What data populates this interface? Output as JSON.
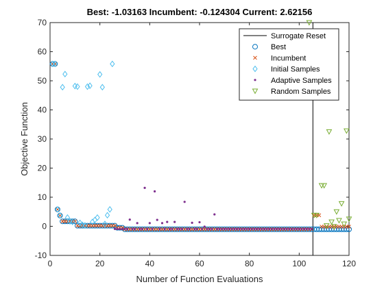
{
  "chart_data": {
    "type": "scatter",
    "title": "Best: -1.03163 Incumbent: -0.124304 Current: 2.62156",
    "xlabel": "Number of Function Evaluations",
    "ylabel": "Objective Function",
    "xlim": [
      0,
      120
    ],
    "xticks": [
      0,
      20,
      40,
      60,
      80,
      100,
      120
    ],
    "ylim": [
      -10,
      70
    ],
    "yticks": [
      -10,
      0,
      10,
      20,
      30,
      40,
      50,
      60,
      70
    ],
    "legend": "upper right",
    "series": [
      {
        "name": "Surrogate Reset",
        "color": "#000000",
        "marker": "line",
        "x": [
          105.5,
          105.5
        ],
        "values": [
          -10,
          70
        ]
      },
      {
        "name": "Best",
        "color": "#0072bd",
        "marker": "o",
        "x": [
          1,
          2,
          3,
          4,
          5,
          6,
          7,
          8,
          9,
          10,
          11,
          12,
          13,
          14,
          15,
          16,
          17,
          18,
          19,
          20,
          21,
          22,
          23,
          24,
          25,
          26,
          27,
          28,
          29,
          30,
          31,
          32,
          33,
          34,
          35,
          36,
          37,
          38,
          39,
          40,
          41,
          42,
          43,
          44,
          45,
          46,
          47,
          48,
          49,
          50,
          51,
          52,
          53,
          54,
          55,
          56,
          57,
          58,
          59,
          60,
          61,
          62,
          63,
          64,
          65,
          66,
          67,
          68,
          69,
          70,
          71,
          72,
          73,
          74,
          75,
          76,
          77,
          78,
          79,
          80,
          81,
          82,
          83,
          84,
          85,
          86,
          87,
          88,
          89,
          90,
          91,
          92,
          93,
          94,
          95,
          96,
          97,
          98,
          99,
          100,
          101,
          102,
          103,
          104,
          105,
          106,
          107,
          108,
          109,
          110,
          111,
          112,
          113,
          114,
          115,
          116,
          117,
          118,
          119,
          120
        ],
        "values": [
          55.8,
          55.8,
          5.8,
          3.7,
          1.7,
          1.7,
          1.7,
          1.7,
          1.7,
          1.7,
          0.2,
          0.2,
          0.2,
          0.2,
          0.2,
          0.2,
          0.2,
          0.2,
          0.2,
          0.2,
          0.2,
          0.2,
          0.2,
          0.2,
          0.2,
          0.2,
          -0.5,
          -0.5,
          -0.5,
          -1.03,
          -1.03,
          -1.03,
          -1.03,
          -1.03,
          -1.03,
          -1.03,
          -1.03,
          -1.03,
          -1.03,
          -1.03,
          -1.03,
          -1.03,
          -1.03,
          -1.03,
          -1.03,
          -1.03,
          -1.03,
          -1.03,
          -1.03,
          -1.03,
          -1.03,
          -1.03,
          -1.03,
          -1.03,
          -1.03,
          -1.03,
          -1.03,
          -1.03,
          -1.03,
          -1.03,
          -1.03,
          -1.03,
          -1.03,
          -1.03,
          -1.03,
          -1.03,
          -1.03,
          -1.03,
          -1.03,
          -1.03,
          -1.03,
          -1.03,
          -1.03,
          -1.03,
          -1.03,
          -1.03,
          -1.03,
          -1.03,
          -1.03,
          -1.03,
          -1.03,
          -1.03,
          -1.03,
          -1.03,
          -1.03,
          -1.03,
          -1.03,
          -1.03,
          -1.03,
          -1.03,
          -1.03,
          -1.03,
          -1.03,
          -1.03,
          -1.03,
          -1.03,
          -1.03,
          -1.03,
          -1.03,
          -1.03,
          -1.03,
          -1.03,
          -1.03,
          -1.03,
          -1.03,
          -1.03,
          -1.03,
          -1.03,
          -1.03,
          -1.03,
          -1.03,
          -1.03,
          -1.03,
          -1.03,
          -1.03,
          -1.03,
          -1.03,
          -1.03,
          -1.03,
          -1.03
        ]
      },
      {
        "name": "Incumbent",
        "color": "#d95319",
        "marker": "x",
        "x": [
          1,
          2,
          3,
          4,
          5,
          6,
          7,
          8,
          9,
          10,
          11,
          12,
          13,
          14,
          15,
          16,
          17,
          18,
          19,
          20,
          21,
          22,
          23,
          24,
          25,
          26,
          27,
          28,
          29,
          30,
          31,
          32,
          33,
          34,
          35,
          36,
          37,
          38,
          39,
          40,
          41,
          42,
          43,
          44,
          45,
          46,
          47,
          48,
          49,
          50,
          51,
          52,
          53,
          54,
          55,
          56,
          57,
          58,
          59,
          60,
          61,
          62,
          63,
          64,
          65,
          66,
          67,
          68,
          69,
          70,
          71,
          72,
          73,
          74,
          75,
          76,
          77,
          78,
          79,
          80,
          81,
          82,
          83,
          84,
          85,
          86,
          87,
          88,
          89,
          90,
          91,
          92,
          93,
          94,
          95,
          96,
          97,
          98,
          99,
          100,
          101,
          102,
          103,
          104,
          105,
          106,
          107,
          108,
          109,
          110,
          111,
          112,
          113,
          114,
          115,
          116,
          117,
          118,
          119,
          120
        ],
        "values": [
          55.8,
          55.8,
          5.8,
          3.7,
          1.7,
          1.7,
          1.7,
          1.7,
          1.7,
          1.7,
          0.2,
          0.2,
          0.2,
          0.2,
          0.2,
          0.2,
          0.2,
          0.2,
          0.2,
          0.2,
          0.2,
          0.2,
          0.2,
          0.2,
          0.2,
          0.2,
          -0.5,
          -0.5,
          -0.5,
          -1.03,
          -1.03,
          -1.03,
          -1.03,
          -1.03,
          -1.03,
          -1.03,
          -1.03,
          -1.03,
          -1.03,
          -1.03,
          -1.03,
          -1.03,
          -1.03,
          -1.03,
          -1.03,
          -1.03,
          -1.03,
          -1.03,
          -1.03,
          -1.03,
          -1.03,
          -1.03,
          -1.03,
          -1.03,
          -1.03,
          -1.03,
          -1.03,
          -1.03,
          -1.03,
          -1.03,
          -1.03,
          -1.03,
          -1.03,
          -1.03,
          -1.03,
          -1.03,
          -1.03,
          -1.03,
          -1.03,
          -1.03,
          -1.03,
          -1.03,
          -1.03,
          -1.03,
          -1.03,
          -1.03,
          -1.03,
          -1.03,
          -1.03,
          -1.03,
          -1.03,
          -1.03,
          -1.03,
          -1.03,
          -1.03,
          -1.03,
          -1.03,
          -1.03,
          -1.03,
          -1.03,
          -1.03,
          -1.03,
          -1.03,
          -1.03,
          -1.03,
          -1.03,
          -1.03,
          -1.03,
          -1.03,
          -1.03,
          -1.03,
          -1.03,
          -1.03,
          -1.03,
          -1.03,
          3.8,
          3.8,
          3.8,
          -0.12,
          -0.12,
          -0.12,
          -0.12,
          -0.12,
          -0.12,
          -0.12,
          -0.12,
          -0.12,
          -0.12,
          -0.12,
          -0.12
        ]
      },
      {
        "name": "Initial Samples",
        "color": "#4dbeee",
        "marker": "diamond",
        "x": [
          1,
          2,
          3,
          4,
          5,
          6,
          7,
          8,
          9,
          10,
          11,
          12,
          13,
          14,
          15,
          16,
          17,
          18,
          19,
          20,
          21,
          22,
          23,
          24,
          25
        ],
        "values": [
          55.8,
          55.8,
          5.8,
          3.7,
          47.8,
          52.3,
          3.0,
          1.7,
          1.5,
          48.2,
          48,
          1.2,
          0.5,
          0.3,
          48,
          48.3,
          1.5,
          2.2,
          3.0,
          52.2,
          47.8,
          0.8,
          3.8,
          5.8,
          55.8
        ]
      },
      {
        "name": "Adaptive Samples",
        "color": "#7e2f8e",
        "marker": "dot",
        "x": [
          26,
          27,
          28,
          29,
          30,
          31,
          32,
          33,
          34,
          35,
          36,
          37,
          38,
          39,
          40,
          41,
          42,
          43,
          44,
          45,
          46,
          47,
          48,
          49,
          50,
          51,
          52,
          53,
          54,
          55,
          56,
          57,
          58,
          59,
          60,
          61,
          62,
          63,
          64,
          65,
          66,
          67,
          68,
          69,
          70,
          71,
          72,
          73,
          74,
          75,
          76,
          77,
          78,
          79,
          80,
          81,
          82,
          83,
          84,
          85,
          86,
          87,
          88,
          89,
          90,
          91,
          92,
          93,
          94,
          95,
          96,
          97,
          98,
          99,
          100,
          101,
          102,
          103,
          104,
          105
        ],
        "values": [
          -0.9,
          -0.9,
          -0.9,
          -0.9,
          -0.9,
          -0.9,
          2.3,
          -0.9,
          -0.9,
          1.1,
          -0.9,
          -0.9,
          13.2,
          -0.9,
          1.1,
          -0.9,
          12,
          2.2,
          -0.9,
          1.1,
          -0.9,
          1.5,
          -0.9,
          -0.9,
          1.5,
          -0.9,
          -0.9,
          -0.9,
          8.4,
          -0.9,
          -0.9,
          1.2,
          -0.9,
          -0.9,
          1.4,
          -0.9,
          -0.1,
          -0.9,
          -0.9,
          -0.9,
          4.1,
          -0.9,
          -0.9,
          -0.9,
          -0.9,
          -0.9,
          -0.9,
          -0.9,
          -0.9,
          -0.9,
          -0.9,
          -0.9,
          -0.9,
          -0.9,
          -0.9,
          -0.9,
          -0.9,
          -0.9,
          -0.9,
          -0.9,
          -0.9,
          -0.9,
          -0.9,
          -0.9,
          -0.9,
          -0.9,
          -0.9,
          -0.9,
          -0.9,
          -0.9,
          -0.9,
          -0.9,
          -0.9,
          -0.9,
          -0.9,
          -0.9,
          -0.9,
          -0.9,
          -0.9,
          -0.9
        ]
      },
      {
        "name": "Random Samples",
        "color": "#77ac30",
        "marker": "triangle-down",
        "x": [
          104,
          106,
          107,
          109,
          110,
          111,
          112,
          113,
          114,
          115,
          116,
          117,
          118,
          119,
          120
        ],
        "values": [
          70,
          3.8,
          3.8,
          14,
          14,
          0.2,
          32.5,
          1.5,
          -0.1,
          5,
          2.0,
          7.8,
          0.8,
          32.8,
          2.5
        ]
      }
    ]
  }
}
